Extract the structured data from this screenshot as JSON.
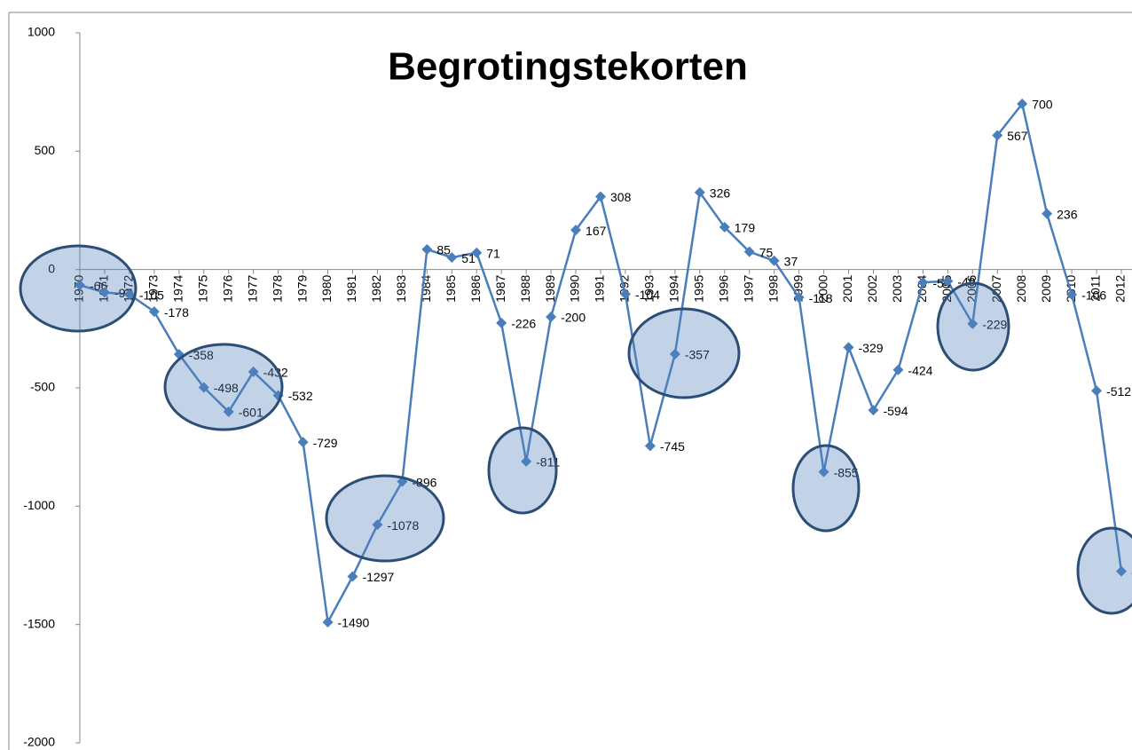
{
  "chart_data": {
    "type": "line",
    "title": "Begrotingstekorten",
    "categories": [
      "1970",
      "1971",
      "1972",
      "1973",
      "1974",
      "1975",
      "1976",
      "1977",
      "1978",
      "1979",
      "1980",
      "1981",
      "1982",
      "1983",
      "1984",
      "1985",
      "1986",
      "1987",
      "1988",
      "1989",
      "1990",
      "1991",
      "1992",
      "1993",
      "1994",
      "1995",
      "1996",
      "1997",
      "1998",
      "1999",
      "2000",
      "2001",
      "2002",
      "2003",
      "2004",
      "2005",
      "2006",
      "2007",
      "2008",
      "2009",
      "2010",
      "2011",
      "2012"
    ],
    "series": [
      {
        "name": "Begrotingstekorten",
        "color": "#4a7ebb",
        "values": [
          -66,
          -97,
          -105,
          -178,
          -358,
          -498,
          -601,
          -432,
          -532,
          -729,
          -1490,
          -1297,
          -1078,
          -896,
          85,
          51,
          71,
          -226,
          -811,
          -200,
          167,
          308,
          -104,
          -745,
          -357,
          326,
          179,
          75,
          37,
          -118,
          -855,
          -329,
          -594,
          -424,
          -54,
          -49,
          -229,
          567,
          700,
          236,
          -106,
          -512,
          -1275
        ]
      }
    ],
    "ylim": [
      -2000,
      1000
    ],
    "yticks": [
      -2000,
      -1500,
      -1000,
      -500,
      0,
      500,
      1000
    ]
  }
}
